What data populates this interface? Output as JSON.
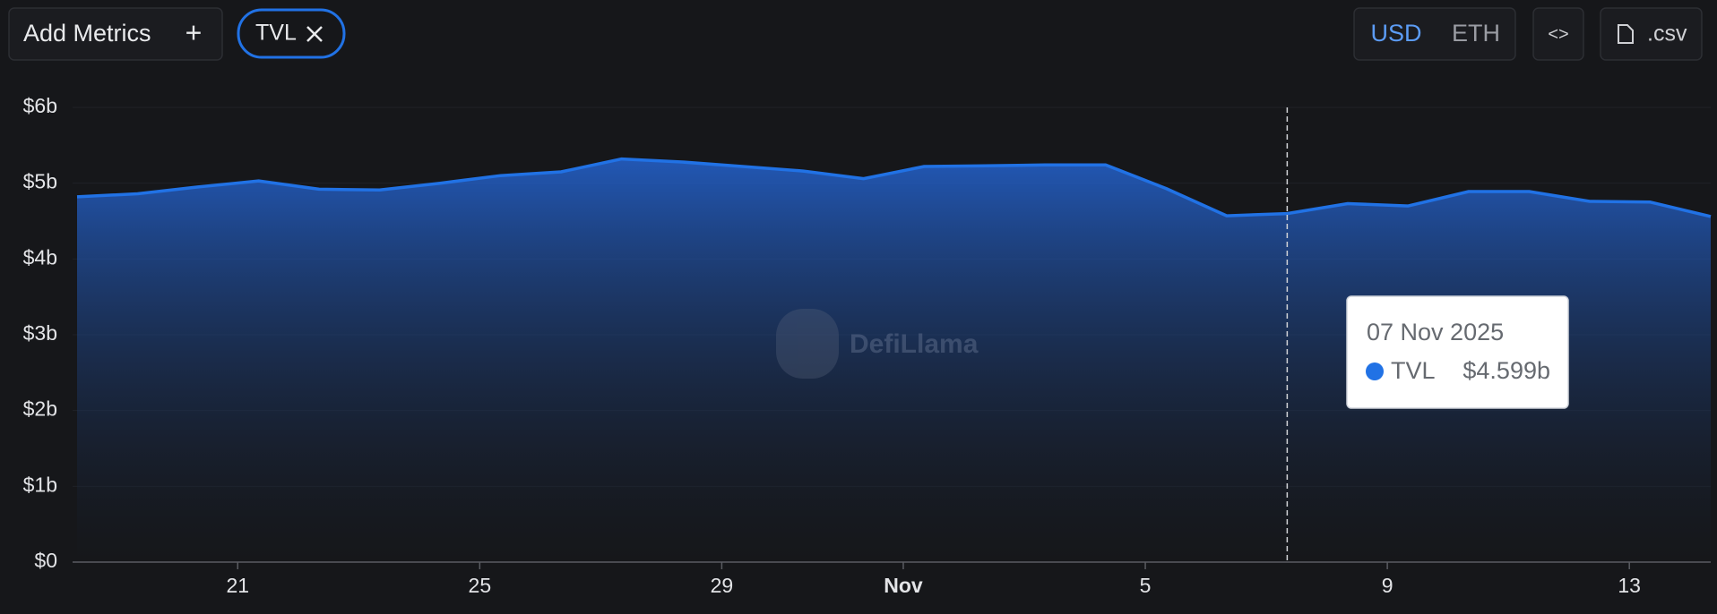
{
  "ui": {
    "add_metrics": "Add Metrics",
    "plus": "+",
    "currency_usd": "USD",
    "currency_eth": "ETH",
    "embed": "<>",
    "csv": ".csv",
    "watermark": "DefiLlama"
  },
  "chart_data": {
    "type": "area",
    "x": [
      "2025-10-18",
      "2025-10-19",
      "2025-10-20",
      "2025-10-21",
      "2025-10-22",
      "2025-10-23",
      "2025-10-24",
      "2025-10-25",
      "2025-10-26",
      "2025-10-27",
      "2025-10-28",
      "2025-10-29",
      "2025-10-30",
      "2025-10-31",
      "2025-11-01",
      "2025-11-02",
      "2025-11-03",
      "2025-11-04",
      "2025-11-05",
      "2025-11-06",
      "2025-11-07",
      "2025-11-08",
      "2025-11-09",
      "2025-11-10",
      "2025-11-11",
      "2025-11-12",
      "2025-11-13",
      "2025-11-14"
    ],
    "series": [
      {
        "name": "TVL",
        "color": "#2172e5",
        "values": [
          4.82,
          4.86,
          4.95,
          5.03,
          4.92,
          4.91,
          5.0,
          5.1,
          5.15,
          5.32,
          5.28,
          5.22,
          5.16,
          5.06,
          5.22,
          5.23,
          5.24,
          5.24,
          4.93,
          4.57,
          4.599,
          4.73,
          4.7,
          4.89,
          4.89,
          4.76,
          4.75,
          4.56
        ]
      }
    ],
    "xlim": [
      "2025-10-18",
      "2025-11-14"
    ],
    "xticks": [
      {
        "value": "2025-10-21",
        "label": "21"
      },
      {
        "value": "2025-10-25",
        "label": "25"
      },
      {
        "value": "2025-10-29",
        "label": "29"
      },
      {
        "value": "2025-11-01",
        "label": "Nov"
      },
      {
        "value": "2025-11-05",
        "label": "5"
      },
      {
        "value": "2025-11-09",
        "label": "9"
      },
      {
        "value": "2025-11-13",
        "label": "13"
      }
    ],
    "ylim": [
      0,
      6
    ],
    "yticks": [
      {
        "value": 0,
        "label": "$0"
      },
      {
        "value": 1,
        "label": "$1b"
      },
      {
        "value": 2,
        "label": "$2b"
      },
      {
        "value": 3,
        "label": "$3b"
      },
      {
        "value": 4,
        "label": "$4b"
      },
      {
        "value": 5,
        "label": "$5b"
      },
      {
        "value": 6,
        "label": "$6b"
      }
    ],
    "grid": true,
    "tooltip": {
      "x": "2025-11-07",
      "date_label": "07 Nov 2025",
      "value_label": "$4.599b"
    }
  }
}
